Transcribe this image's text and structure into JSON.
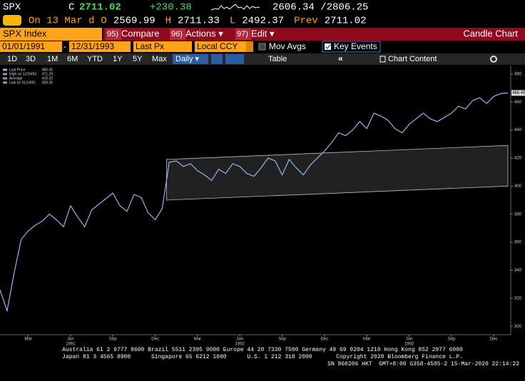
{
  "header": {
    "ticker": "SPX",
    "close_label": "C",
    "close": "2711.02",
    "change": "+230.38",
    "range": "2606.34 /2806.25",
    "stats": [
      {
        "label": "On 13 Mar d",
        "value": ""
      },
      {
        "label": "O",
        "value": "2569.99"
      },
      {
        "label": "H",
        "value": "2711.33"
      },
      {
        "label": "L",
        "value": "2492.37"
      },
      {
        "label": "Prev",
        "value": "2711.02"
      }
    ]
  },
  "menu": {
    "security": "SPX Index",
    "items": [
      {
        "num": "95)",
        "label": "Compare"
      },
      {
        "num": "96)",
        "label": "Actions ▾"
      },
      {
        "num": "97)",
        "label": "Edit ▾"
      }
    ],
    "view": "Candle Chart"
  },
  "controls": {
    "start": "01/01/1991",
    "dash": "-",
    "end": "12/31/1993",
    "field": "Last Px",
    "currency": "Local CCY",
    "mov_avgs": "Mov Avgs",
    "key_events": "Key Events"
  },
  "periods": {
    "buttons": [
      "1D",
      "3D",
      "1M",
      "6M",
      "YTD",
      "1Y",
      "5Y",
      "Max"
    ],
    "frequency": "Daily ▾",
    "table": "Table",
    "chevron": "«",
    "content": "Chart Content"
  },
  "chart": {
    "type": "line",
    "color": "#8fb8ee",
    "legend": [
      {
        "label": "Last Price",
        "value": "466.45"
      },
      {
        "label": "High on 12/29/93",
        "value": "471.29"
      },
      {
        "label": "Average",
        "value": "416.32"
      },
      {
        "label": "Low on 01/14/91",
        "value": "309.35"
      }
    ],
    "last_label": "466.45",
    "last_value": 466.45,
    "xlim": [
      0,
      36
    ],
    "xticks": [
      {
        "value": 2,
        "label": "Mar"
      },
      {
        "value": 5,
        "label": "Jun"
      },
      {
        "value": 8,
        "label": "Sep"
      },
      {
        "value": 11,
        "label": "Dec"
      },
      {
        "value": 14,
        "label": "Mar"
      },
      {
        "value": 17,
        "label": "Jun"
      },
      {
        "value": 20,
        "label": "Sep"
      },
      {
        "value": 23,
        "label": "Dec"
      },
      {
        "value": 26,
        "label": "Mar"
      },
      {
        "value": 29,
        "label": "Jun"
      },
      {
        "value": 32,
        "label": "Sep"
      },
      {
        "value": 35,
        "label": "Dec"
      }
    ],
    "years": [
      {
        "value": 5,
        "label": "1991"
      },
      {
        "value": 17,
        "label": "1992"
      },
      {
        "value": 29,
        "label": "1993"
      }
    ],
    "ylim": [
      294,
      486
    ],
    "yticks": [
      300,
      320,
      340,
      360,
      380,
      400,
      420,
      440,
      460,
      480
    ],
    "values": [
      326,
      311,
      338,
      362,
      368,
      372,
      375,
      380,
      376,
      371,
      386,
      378,
      371,
      383,
      387,
      391,
      395,
      386,
      382,
      394,
      392,
      381,
      376,
      384,
      417,
      418,
      414,
      416,
      411,
      408,
      404,
      412,
      409,
      416,
      414,
      409,
      407,
      413,
      420,
      418,
      408,
      419,
      413,
      408,
      415,
      420,
      425,
      431,
      438,
      436,
      440,
      446,
      441,
      452,
      450,
      447,
      441,
      438,
      444,
      448,
      452,
      448,
      446,
      449,
      452,
      457,
      455,
      461,
      463,
      459,
      464,
      466,
      466.45
    ],
    "channel": {
      "x": [
        11.8,
        36
      ],
      "upper": [
        419,
        429
      ],
      "lower": [
        390,
        400
      ]
    }
  },
  "footer": {
    "lines": [
      "Australia 61 2 9777 8600 Brazil 5511 2395 9000 Europe 44 20 7330 7500 Germany 49 69 9204 1210 Hong Kong 852 2977 6000",
      "Japan 81 3 4565 8900      Singapore 65 6212 1000      U.S. 1 212 318 2000       Copyright 2020 Bloomberg Finance L.P.",
      "SN 860206 HKT  GMT+8:00 G358-4505-2 15-Mar-2020 22:14:22"
    ]
  }
}
